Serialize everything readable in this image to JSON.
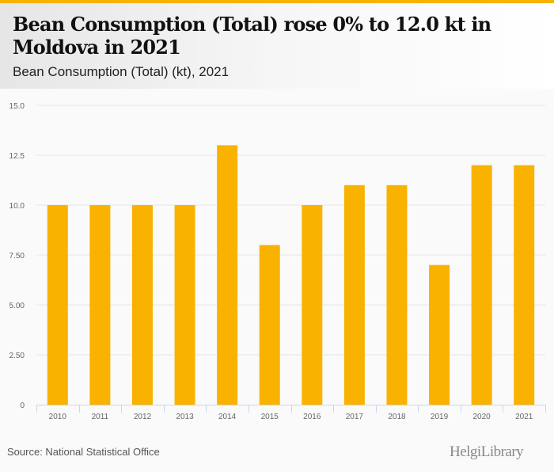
{
  "header": {
    "title": "Bean Consumption (Total) rose 0% to 12.0 kt in Moldova in 2021",
    "subtitle": "Bean Consumption (Total) (kt), 2021"
  },
  "footer": {
    "source": "Source: National Statistical Office",
    "logo": "HelgiLibrary"
  },
  "colors": {
    "accent": "#f9b200",
    "bar": "#f9b200",
    "grid": "#e5e5e5",
    "axis": "#ccd6eb"
  },
  "chart_data": {
    "type": "bar",
    "title": "Bean Consumption (Total) (kt), 2021",
    "xlabel": "",
    "ylabel": "",
    "categories": [
      "2010",
      "2011",
      "2012",
      "2013",
      "2014",
      "2015",
      "2016",
      "2017",
      "2018",
      "2019",
      "2020",
      "2021"
    ],
    "values": [
      10,
      10,
      10,
      10,
      13,
      8,
      10,
      11,
      11,
      7,
      12,
      12
    ],
    "ylim": [
      0,
      15
    ],
    "yticks": [
      0,
      2.5,
      5,
      7.5,
      10,
      12.5,
      15
    ],
    "ytick_labels": [
      "0",
      "2.50",
      "5.00",
      "7.50",
      "10.0",
      "12.5",
      "15.0"
    ],
    "grid": true,
    "legend": "none"
  }
}
